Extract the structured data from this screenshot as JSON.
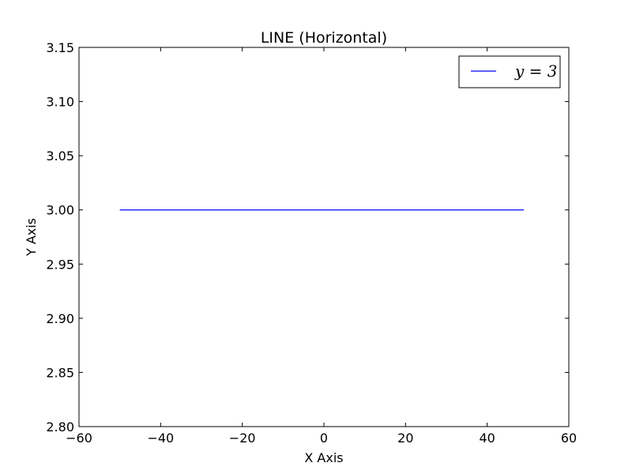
{
  "chart_data": {
    "type": "line",
    "title": "LINE (Horizontal)",
    "xlabel": "X Axis",
    "ylabel": "Y Axis",
    "xlim": [
      -60,
      60
    ],
    "ylim": [
      2.8,
      3.15
    ],
    "xticks": [
      -60,
      -40,
      -20,
      0,
      20,
      40,
      60
    ],
    "xtick_labels": [
      "−60",
      "−40",
      "−20",
      "0",
      "20",
      "40",
      "60"
    ],
    "yticks": [
      2.8,
      2.85,
      2.9,
      2.95,
      3.0,
      3.05,
      3.1,
      3.15
    ],
    "ytick_labels": [
      "2.80",
      "2.85",
      "2.90",
      "2.95",
      "3.00",
      "3.05",
      "3.10",
      "3.15"
    ],
    "grid": false,
    "legend_position": "top-right",
    "series": [
      {
        "name": "y = 3",
        "color": "#0000ff",
        "x": [
          -50,
          49
        ],
        "y": [
          3,
          3
        ]
      }
    ]
  }
}
